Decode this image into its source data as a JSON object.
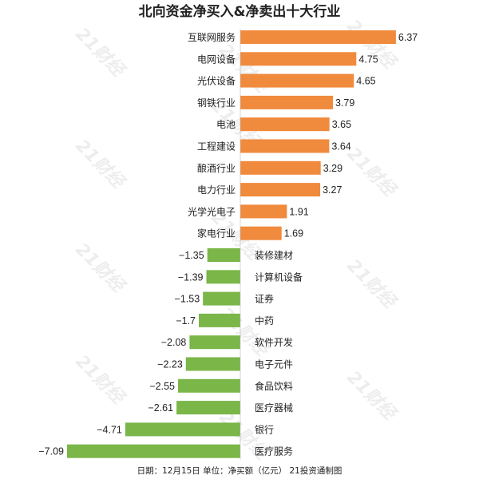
{
  "chart_data": {
    "type": "bar",
    "orientation": "horizontal",
    "title": "北向资金净买入&净卖出十大行业",
    "categories": [
      "互联网服务",
      "电网设备",
      "光伏设备",
      "钢铁行业",
      "电池",
      "工程建设",
      "酿酒行业",
      "电力行业",
      "光学光电子",
      "家电行业",
      "装修建材",
      "计算机设备",
      "证券",
      "中药",
      "软件开发",
      "电子元件",
      "食品饮料",
      "医疗器械",
      "银行",
      "医疗服务"
    ],
    "values": [
      6.37,
      4.75,
      4.65,
      3.79,
      3.65,
      3.64,
      3.29,
      3.27,
      1.91,
      1.69,
      -1.35,
      -1.39,
      -1.53,
      -1.7,
      -2.08,
      -2.23,
      -2.55,
      -2.61,
      -4.71,
      -7.09
    ],
    "value_labels": [
      "6.37",
      "4.75",
      "4.65",
      "3.79",
      "3.65",
      "3.64",
      "3.29",
      "3.27",
      "1.91",
      "1.69",
      "−1.35",
      "−1.39",
      "−1.53",
      "−1.7",
      "−2.08",
      "−2.23",
      "−2.55",
      "−2.61",
      "−4.71",
      "−7.09"
    ],
    "colors": {
      "positive": "#f08a3c",
      "negative": "#7ab648"
    },
    "footnote": "日期：12月15日 单位：净买额（亿元） 21投资通制图",
    "watermark": "21财经",
    "grid": false,
    "legend": "none"
  }
}
